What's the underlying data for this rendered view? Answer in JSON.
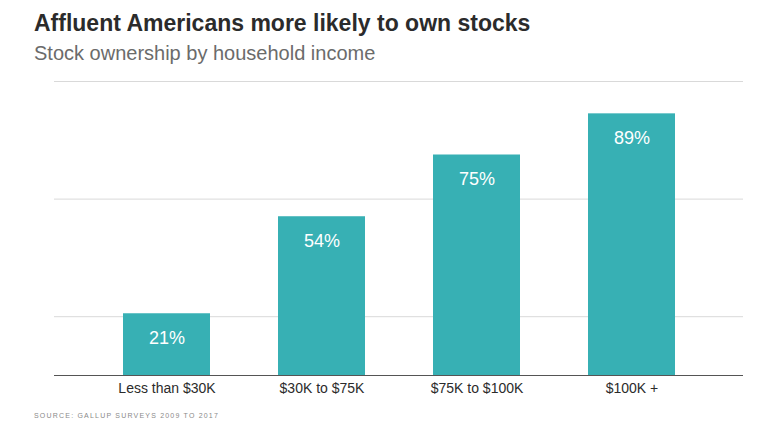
{
  "chart_data": {
    "type": "bar",
    "title": "Affluent Americans more likely to own stocks",
    "subtitle": "Stock ownership by household income",
    "caption": "SOURCE: GALLUP SURVEYS 2009 TO 2017",
    "categories": [
      "Less than $30K",
      "$30K to $75K",
      "$75K to $100K",
      "$100K +"
    ],
    "values": [
      21,
      54,
      75,
      89
    ],
    "value_labels": [
      "21%",
      "54%",
      "75%",
      "89%"
    ],
    "color": "#37b0b4",
    "ylim": [
      0,
      100
    ],
    "yticks": [
      20,
      60,
      100
    ],
    "grid": true,
    "data_labels": true,
    "tick_labels": "x"
  }
}
